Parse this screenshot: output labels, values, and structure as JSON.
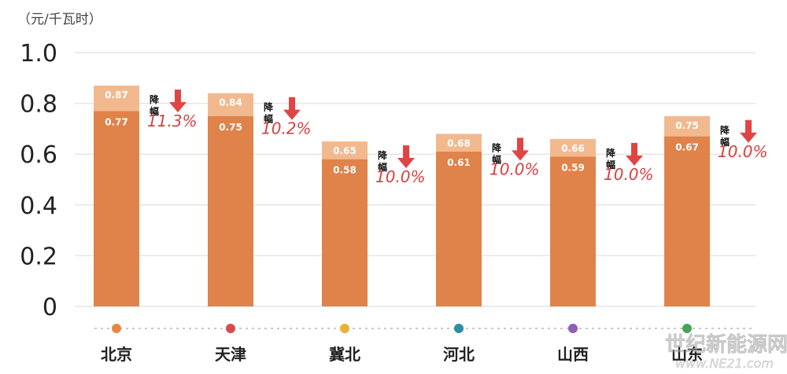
{
  "chart_data": {
    "type": "bar",
    "ylabel": "（元/千瓦时）",
    "ylim": [
      0,
      1.0
    ],
    "yticks": [
      {
        "value": 0,
        "label": "0"
      },
      {
        "value": 0.2,
        "label": "0.2"
      },
      {
        "value": 0.4,
        "label": "0.4"
      },
      {
        "value": 0.6,
        "label": "0.6"
      },
      {
        "value": 0.8,
        "label": "0.8"
      },
      {
        "value": 1.0,
        "label": "1.0"
      }
    ],
    "grid": true,
    "categories": [
      "北京",
      "天津",
      "冀北",
      "河北",
      "山西",
      "山东"
    ],
    "series": [
      {
        "values": [
          0.87,
          0.84,
          0.65,
          0.68,
          0.66,
          0.75
        ]
      },
      {
        "values": [
          0.77,
          0.75,
          0.58,
          0.61,
          0.59,
          0.67
        ]
      }
    ],
    "value_labels": {
      "upper": [
        "0.87",
        "0.84",
        "0.65",
        "0.68",
        "0.66",
        "0.75"
      ],
      "lower": [
        "0.77",
        "0.75",
        "0.58",
        "0.61",
        "0.59",
        "0.67"
      ]
    },
    "annotations": {
      "label": "降幅",
      "values": [
        "11.3%",
        "10.2%",
        "10.0%",
        "10.0%",
        "10.0%",
        "10.0%"
      ]
    },
    "category_dot_colors": [
      "#e8873f",
      "#d94a4a",
      "#e8b23a",
      "#2b8fa8",
      "#8e5fb5",
      "#4aa35a"
    ],
    "colors": {
      "bar_upper": "#f2b98f",
      "bar_lower": "#e0834a",
      "arrow": "#e04545",
      "pct_text": "#d94040",
      "grid": "#e6e6e6",
      "dotted_line": "#c8c8c8"
    }
  },
  "watermark": {
    "line1": "世纪新能源网",
    "line2": "www.NE21.com"
  }
}
